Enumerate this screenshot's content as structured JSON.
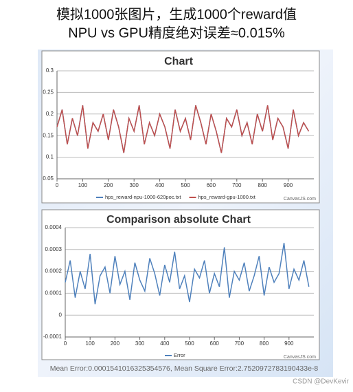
{
  "header": {
    "line1": "模拟1000张图片，生成1000个reward值",
    "line2": "NPU vs GPU精度绝对误差≈0.015%"
  },
  "chart_data": [
    {
      "type": "line",
      "title": "Chart",
      "credit": "CanvasJS.com",
      "grid": true,
      "xlim": [
        0,
        1000
      ],
      "xticks": [
        0,
        100,
        200,
        300,
        400,
        500,
        600,
        700,
        800,
        900
      ],
      "ylim": [
        0.05,
        0.3
      ],
      "yticks": [
        0.05,
        0.1,
        0.15,
        0.2,
        0.25,
        0.3
      ],
      "x": [
        0,
        20,
        40,
        60,
        80,
        100,
        120,
        140,
        160,
        180,
        200,
        220,
        240,
        260,
        280,
        300,
        320,
        340,
        360,
        380,
        400,
        420,
        440,
        460,
        480,
        500,
        520,
        540,
        560,
        580,
        600,
        620,
        640,
        660,
        680,
        700,
        720,
        740,
        760,
        780,
        800,
        820,
        840,
        860,
        880,
        900,
        920,
        940,
        960,
        980
      ],
      "series": [
        {
          "name": "hps_reward-npu-1000-620poc.txt",
          "color": "#4f81bc",
          "values": [
            0.17,
            0.21,
            0.13,
            0.19,
            0.15,
            0.22,
            0.12,
            0.18,
            0.16,
            0.2,
            0.14,
            0.21,
            0.17,
            0.11,
            0.19,
            0.16,
            0.22,
            0.13,
            0.18,
            0.15,
            0.2,
            0.17,
            0.12,
            0.21,
            0.16,
            0.19,
            0.14,
            0.22,
            0.18,
            0.13,
            0.2,
            0.16,
            0.11,
            0.19,
            0.17,
            0.21,
            0.15,
            0.18,
            0.13,
            0.2,
            0.16,
            0.22,
            0.14,
            0.19,
            0.17,
            0.12,
            0.21,
            0.15,
            0.18,
            0.16
          ]
        },
        {
          "name": "hps_reward-gpu-1000.txt",
          "color": "#c0504d",
          "values": [
            0.17,
            0.21,
            0.13,
            0.19,
            0.15,
            0.22,
            0.12,
            0.18,
            0.16,
            0.2,
            0.14,
            0.21,
            0.17,
            0.11,
            0.19,
            0.16,
            0.22,
            0.13,
            0.18,
            0.15,
            0.2,
            0.17,
            0.12,
            0.21,
            0.16,
            0.19,
            0.14,
            0.22,
            0.18,
            0.13,
            0.2,
            0.16,
            0.11,
            0.19,
            0.17,
            0.21,
            0.15,
            0.18,
            0.13,
            0.2,
            0.16,
            0.22,
            0.14,
            0.19,
            0.17,
            0.12,
            0.21,
            0.15,
            0.18,
            0.16
          ]
        }
      ]
    },
    {
      "type": "line",
      "title": "Comparison absolute Chart",
      "credit": "CanvasJS.com",
      "grid": true,
      "xlim": [
        0,
        1000
      ],
      "xticks": [
        0,
        100,
        200,
        300,
        400,
        500,
        600,
        700,
        800,
        900
      ],
      "ylim": [
        -0.0001,
        0.0004
      ],
      "yticks": [
        -0.0001,
        0,
        0.0001,
        0.0002,
        0.0003,
        0.0004
      ],
      "x": [
        0,
        20,
        40,
        60,
        80,
        100,
        120,
        140,
        160,
        180,
        200,
        220,
        240,
        260,
        280,
        300,
        320,
        340,
        360,
        380,
        400,
        420,
        440,
        460,
        480,
        500,
        520,
        540,
        560,
        580,
        600,
        620,
        640,
        660,
        680,
        700,
        720,
        740,
        760,
        780,
        800,
        820,
        840,
        860,
        880,
        900,
        920,
        940,
        960,
        980
      ],
      "series": [
        {
          "name": "Error",
          "color": "#4f81bc",
          "values": [
            0.00015,
            0.00025,
            8e-05,
            0.0002,
            0.00012,
            0.00028,
            5e-05,
            0.00018,
            0.00022,
            0.0001,
            0.00027,
            0.00014,
            0.0002,
            7e-05,
            0.00024,
            0.00016,
            0.00011,
            0.00026,
            0.00019,
            9e-05,
            0.00023,
            0.00015,
            0.00029,
            0.00012,
            0.00018,
            6e-05,
            0.00021,
            0.00017,
            0.00025,
            0.0001,
            0.00019,
            0.00013,
            0.00031,
            8e-05,
            0.0002,
            0.00016,
            0.00024,
            0.00011,
            0.00018,
            0.00027,
            9e-05,
            0.00022,
            0.00015,
            0.00019,
            0.00033,
            0.00012,
            0.00021,
            0.00016,
            0.00025,
            0.00013
          ]
        }
      ]
    }
  ],
  "footer": "Mean Error:0.0001541016325354576, Mean Square Error:2.7520972783190433e-8",
  "watermark": "CSDN @DevKevir"
}
